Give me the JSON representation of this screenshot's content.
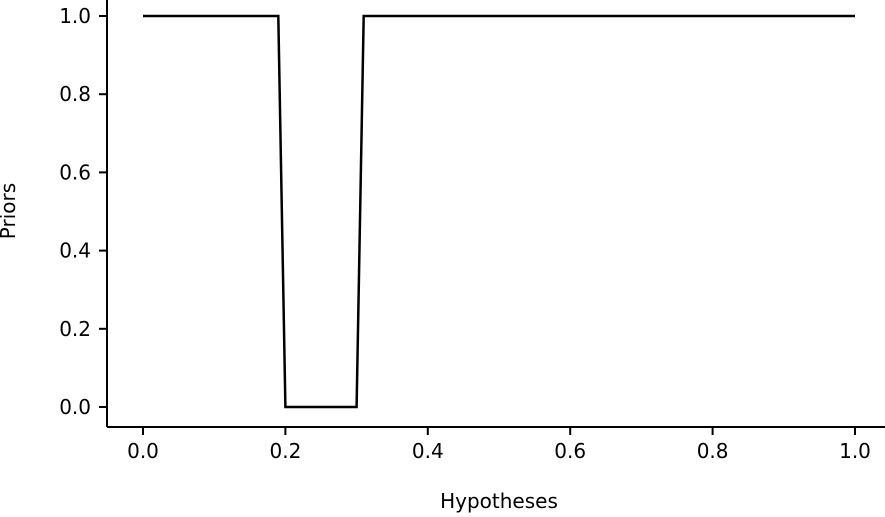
{
  "chart_data": {
    "type": "line",
    "title": "",
    "xlabel": "Hypotheses",
    "ylabel": "Priors",
    "xlim": [
      -0.04,
      1.04
    ],
    "ylim": [
      -0.04,
      1.04
    ],
    "x_ticks": [
      0.0,
      0.2,
      0.4,
      0.6,
      0.8,
      1.0
    ],
    "x_tick_labels": [
      "0.0",
      "0.2",
      "0.4",
      "0.6",
      "0.8",
      "1.0"
    ],
    "y_ticks": [
      0.0,
      0.2,
      0.4,
      0.6,
      0.8,
      1.0
    ],
    "y_tick_labels": [
      "0.0",
      "0.2",
      "0.4",
      "0.6",
      "0.8",
      "1.0"
    ],
    "grid": false,
    "series": [
      {
        "x": [
          0.0,
          0.19,
          0.2,
          0.3,
          0.31,
          1.0
        ],
        "y": [
          1.0,
          1.0,
          0.0,
          0.0,
          1.0,
          1.0
        ]
      }
    ]
  }
}
